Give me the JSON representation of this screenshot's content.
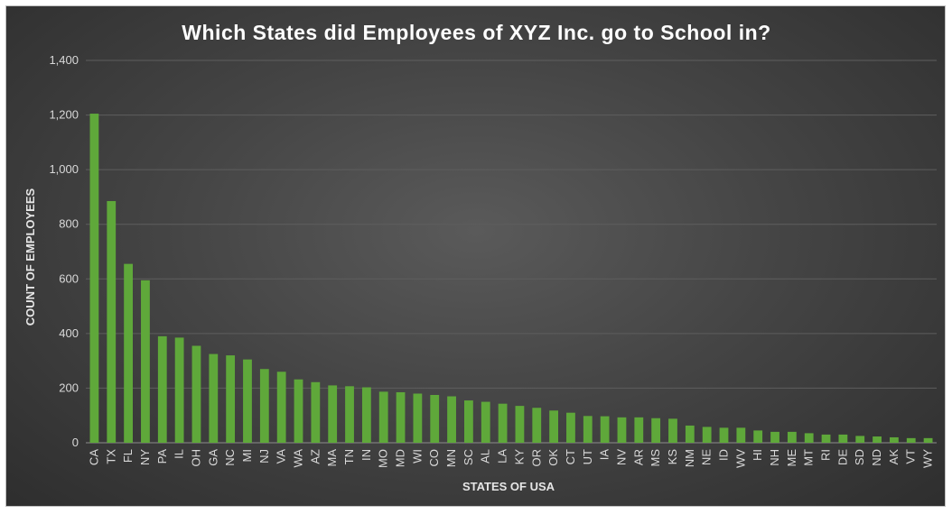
{
  "chart_data": {
    "type": "bar",
    "title": "Which States did Employees of XYZ Inc. go to School in?",
    "xlabel": "STATES OF USA",
    "ylabel": "COUNT OF EMPLOYEES",
    "ylim": [
      0,
      1400
    ],
    "yticks": [
      0,
      200,
      400,
      600,
      800,
      1000,
      1200,
      1400
    ],
    "ytick_labels": [
      "0",
      "200",
      "400",
      "600",
      "800",
      "1,000",
      "1,200",
      "1,400"
    ],
    "grid": true,
    "legend": "none",
    "bar_color": "#5fa83a",
    "categories": [
      "CA",
      "TX",
      "FL",
      "NY",
      "PA",
      "IL",
      "OH",
      "GA",
      "NC",
      "MI",
      "NJ",
      "VA",
      "WA",
      "AZ",
      "MA",
      "TN",
      "IN",
      "MO",
      "MD",
      "WI",
      "CO",
      "MN",
      "SC",
      "AL",
      "LA",
      "KY",
      "OR",
      "OK",
      "CT",
      "UT",
      "IA",
      "NV",
      "AR",
      "MS",
      "KS",
      "NM",
      "NE",
      "ID",
      "WV",
      "HI",
      "NH",
      "ME",
      "MT",
      "RI",
      "DE",
      "SD",
      "ND",
      "AK",
      "VT",
      "WY"
    ],
    "values": [
      1205,
      885,
      655,
      595,
      390,
      385,
      355,
      325,
      320,
      305,
      270,
      260,
      232,
      222,
      210,
      207,
      203,
      187,
      185,
      180,
      175,
      170,
      155,
      150,
      143,
      135,
      128,
      118,
      110,
      98,
      97,
      93,
      93,
      90,
      88,
      63,
      58,
      55,
      55,
      45,
      40,
      40,
      35,
      30,
      30,
      25,
      23,
      20,
      17,
      17
    ]
  }
}
